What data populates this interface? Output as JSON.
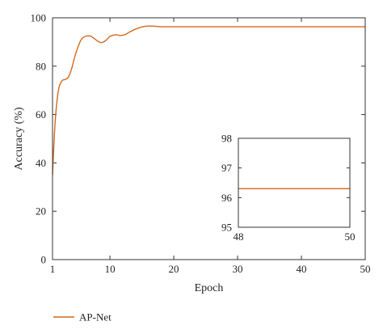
{
  "chart_data": {
    "type": "line",
    "xlabel": "Epoch",
    "ylabel": "Accuracy (%)",
    "xlim": [
      1,
      50
    ],
    "ylim": [
      0,
      100
    ],
    "xticks": [
      1,
      10,
      20,
      30,
      40,
      50
    ],
    "yticks": [
      0,
      20,
      40,
      60,
      80,
      100
    ],
    "grid": false,
    "legend_position": "bottom-left",
    "line_color": "#d2691e",
    "series": [
      {
        "name": "AP-Net",
        "x": [
          1,
          1.3,
          1.6,
          2,
          2.5,
          3,
          3.5,
          4,
          4.5,
          5,
          5.5,
          6,
          6.5,
          7,
          7.5,
          8,
          8.5,
          9,
          9.5,
          10,
          10.5,
          11,
          11.5,
          12,
          12.5,
          13,
          14,
          15,
          16,
          17,
          18,
          20,
          25,
          30,
          35,
          40,
          45,
          50
        ],
        "y": [
          35,
          52,
          63,
          71,
          74,
          74.5,
          75.5,
          79,
          84,
          88,
          91,
          92.2,
          92.5,
          92.4,
          91.5,
          90.5,
          89.8,
          90.0,
          91.0,
          92.3,
          92.8,
          93.0,
          92.7,
          92.8,
          93.2,
          94.0,
          95.3,
          96.2,
          96.6,
          96.5,
          96.3,
          96.3,
          96.3,
          96.3,
          96.3,
          96.3,
          96.3,
          96.3
        ]
      }
    ],
    "inset": {
      "xlim": [
        48,
        50
      ],
      "ylim": [
        95,
        98
      ],
      "xticks": [
        48,
        50
      ],
      "yticks": [
        95,
        96,
        97,
        98
      ],
      "series": [
        {
          "name": "AP-Net",
          "x": [
            48,
            50
          ],
          "y": [
            96.3,
            96.3
          ]
        }
      ]
    }
  }
}
